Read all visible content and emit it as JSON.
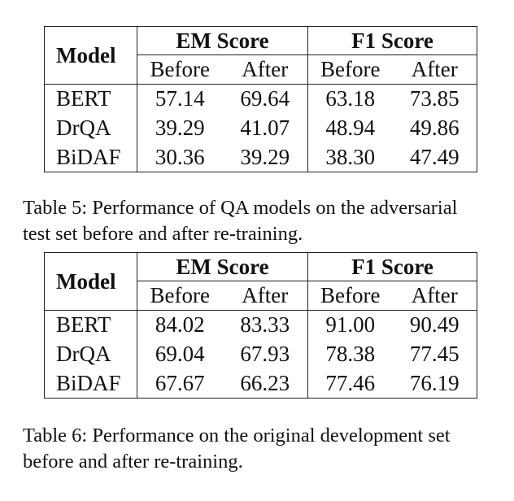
{
  "table5": {
    "header": {
      "model": "Model",
      "em_score": "EM Score",
      "f1_score": "F1 Score",
      "before": "Before",
      "after": "After"
    },
    "rows": [
      {
        "model": "BERT",
        "em_before": "57.14",
        "em_after": "69.64",
        "f1_before": "63.18",
        "f1_after": "73.85"
      },
      {
        "model": "DrQA",
        "em_before": "39.29",
        "em_after": "41.07",
        "f1_before": "48.94",
        "f1_after": "49.86"
      },
      {
        "model": "BiDAF",
        "em_before": "30.36",
        "em_after": "39.29",
        "f1_before": "38.30",
        "f1_after": "47.49"
      }
    ],
    "caption_line1": "Table 5:  Performance of QA models on the adversarial",
    "caption_line2": "test set before and after re-training."
  },
  "table6": {
    "header": {
      "model": "Model",
      "em_score": "EM Score",
      "f1_score": "F1 Score",
      "before": "Before",
      "after": "After"
    },
    "rows": [
      {
        "model": "BERT",
        "em_before": "84.02",
        "em_after": "83.33",
        "f1_before": "91.00",
        "f1_after": "90.49"
      },
      {
        "model": "DrQA",
        "em_before": "69.04",
        "em_after": "67.93",
        "f1_before": "78.38",
        "f1_after": "77.45"
      },
      {
        "model": "BiDAF",
        "em_before": "67.67",
        "em_after": "66.23",
        "f1_before": "77.46",
        "f1_after": "76.19"
      }
    ],
    "caption_line1": "Table 6:  Performance on the original development set",
    "caption_line2": "before and after re-training."
  }
}
